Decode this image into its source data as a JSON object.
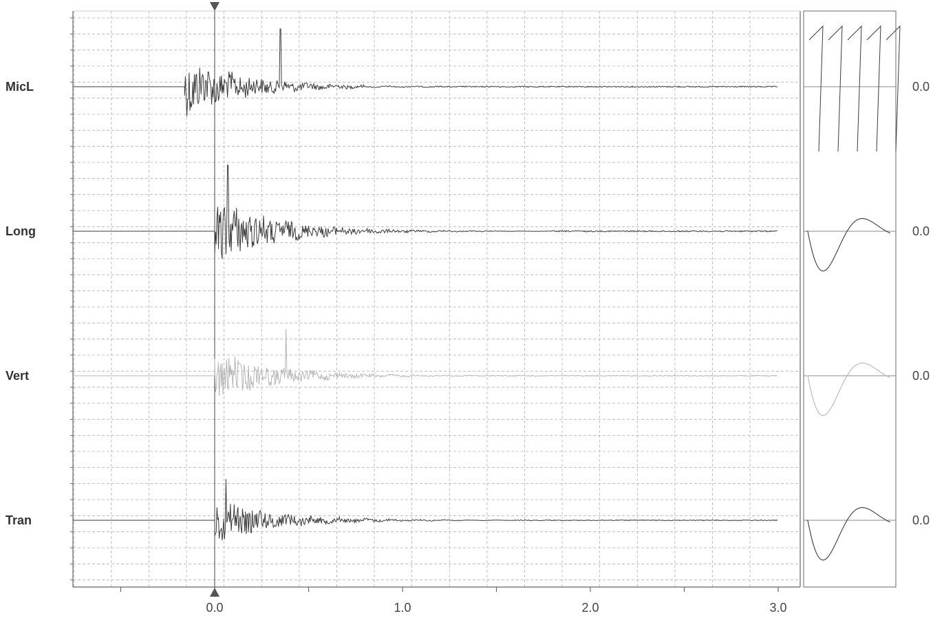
{
  "chart_data": {
    "type": "line",
    "title": "",
    "xlabel": "",
    "ylabel": "",
    "xlim": [
      -0.75,
      3.0
    ],
    "x_ticks": [
      "0.0",
      "1.0",
      "2.0",
      "3.0"
    ],
    "grid": true,
    "trigger_marker_x": 0.0,
    "channels": [
      {
        "name": "MicL",
        "zero_label": "0.0",
        "onset": -0.16,
        "peak_x": 0.35,
        "decay_end": 0.8
      },
      {
        "name": "Long",
        "zero_label": "0.0",
        "onset": 0.0,
        "peak_x": 0.07,
        "decay_end": 1.8
      },
      {
        "name": "Vert",
        "zero_label": "0.0",
        "onset": 0.0,
        "peak_x": 0.38,
        "decay_end": 1.2
      },
      {
        "name": "Tran",
        "zero_label": "0.0",
        "onset": 0.0,
        "peak_x": 0.06,
        "decay_end": 1.6
      }
    ],
    "colors": {
      "trace": "#3a3a3a",
      "light_trace": "#b5b5b5",
      "grid": "#b0b0b0",
      "axis": "#666666"
    }
  }
}
